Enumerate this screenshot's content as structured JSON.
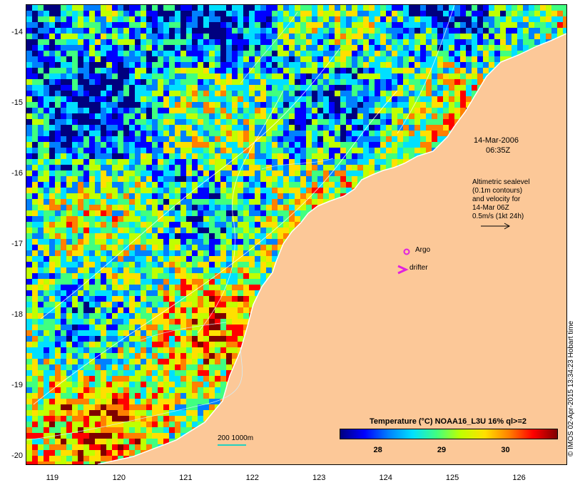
{
  "map": {
    "lon_range": [
      118.6,
      126.7
    ],
    "lat_range": [
      -20.1,
      -13.6
    ],
    "lon_ticks": [
      "119",
      "120",
      "121",
      "122",
      "123",
      "124",
      "125",
      "126"
    ],
    "lat_ticks": [
      "-14",
      "-15",
      "-16",
      "-17",
      "-18",
      "-19",
      "-20"
    ],
    "land_color": "#fcc898",
    "coast_color": "#ffffff"
  },
  "annotations": {
    "date_line1": "14-Mar-2006",
    "date_line2": "06:35Z",
    "alt_line1": "Altimetric sealevel",
    "alt_line2": "(0.1m contours)",
    "alt_line3": "and velocity for",
    "alt_line4": "14-Mar 06Z",
    "alt_line5": "0.5m/s (1kt 24h)",
    "argo_label": "Argo",
    "drifter_label": "drifter",
    "scale_label": "200  1000m",
    "credit": "© IMOS 02-Apr-2015 13:34:23 Hobart time"
  },
  "legend_marks": {
    "argo_icon": "magenta-circle",
    "drifter_icon": "magenta-chevron",
    "velocity_icon": "arrow-right",
    "marker_color": "#e020e0"
  },
  "colorbar": {
    "title": "Temperature (°C) NOAA16_L3U 16% ql>=2",
    "range": [
      27.4,
      30.8
    ],
    "ticks": [
      "28",
      "29",
      "30"
    ],
    "colors": [
      "#00007f",
      "#0000ff",
      "#0080ff",
      "#00e0ff",
      "#40ff80",
      "#c0ff00",
      "#ffe000",
      "#ff8000",
      "#ff0000",
      "#7f0000"
    ]
  }
}
